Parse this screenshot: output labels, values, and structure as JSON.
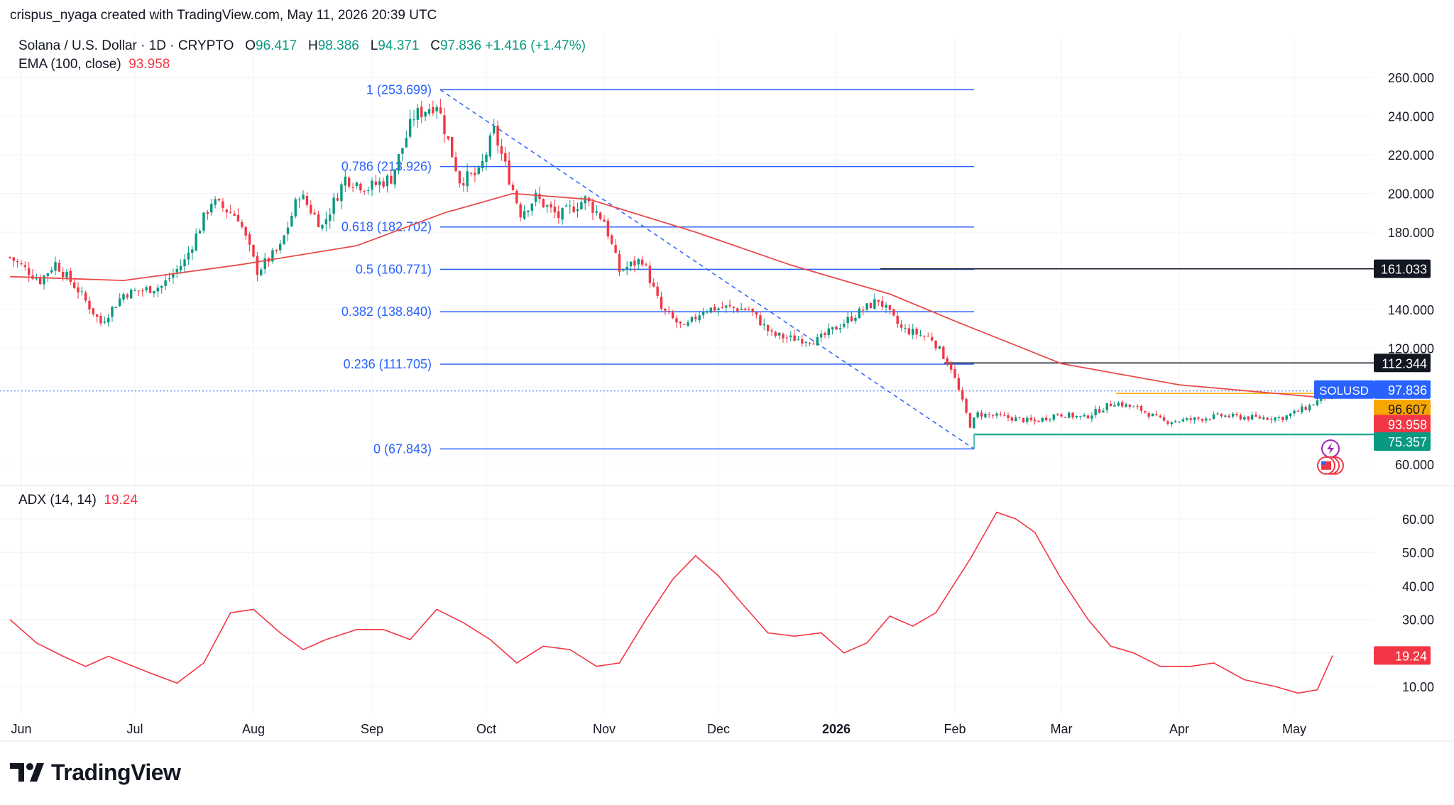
{
  "header": {
    "credit": "crispus_nyaga created with TradingView.com, May 11, 2026 20:39 UTC"
  },
  "legend": {
    "symbol": "Solana / U.S. Dollar · 1D · CRYPTO",
    "o_label": "O",
    "o_value": "96.417",
    "h_label": "H",
    "h_value": "98.386",
    "l_label": "L",
    "l_value": "94.371",
    "c_label": "C",
    "c_value": "97.836",
    "change": "+1.416 (+1.47%)",
    "ema_label": "EMA (100, close)",
    "ema_value": "93.958"
  },
  "adx_legend": {
    "label": "ADX (14, 14)",
    "value": "19.24"
  },
  "footer": {
    "brand": "TradingView"
  },
  "colors": {
    "up": "#089981",
    "down": "#f23645",
    "ema": "#e84b4b",
    "fib": "#2962ff",
    "grid": "#f0f3fa",
    "adx": "#f23645",
    "support": "#22ab94"
  },
  "chart_data": [
    {
      "type": "candlestick",
      "title": "Solana / U.S. Dollar · 1D · CRYPTO",
      "x_ticks": [
        "Jun",
        "Jul",
        "Aug",
        "Sep",
        "Oct",
        "Nov",
        "Dec",
        "2026",
        "Feb",
        "Mar",
        "Apr",
        "May"
      ],
      "y_ticks": [
        "60.000",
        "120.000",
        "140.000",
        "180.000",
        "200.000",
        "220.000",
        "240.000",
        "260.000"
      ],
      "ylim": [
        50,
        270
      ],
      "grid": true,
      "series_close": [
        {
          "x": "2025-05-29",
          "y": 167
        },
        {
          "x": "2025-06-06",
          "y": 155
        },
        {
          "x": "2025-06-10",
          "y": 164
        },
        {
          "x": "2025-06-16",
          "y": 150
        },
        {
          "x": "2025-06-22",
          "y": 133
        },
        {
          "x": "2025-06-28",
          "y": 148
        },
        {
          "x": "2025-07-08",
          "y": 152
        },
        {
          "x": "2025-07-14",
          "y": 165
        },
        {
          "x": "2025-07-21",
          "y": 196
        },
        {
          "x": "2025-07-28",
          "y": 188
        },
        {
          "x": "2025-08-02",
          "y": 160
        },
        {
          "x": "2025-08-08",
          "y": 172
        },
        {
          "x": "2025-08-13",
          "y": 200
        },
        {
          "x": "2025-08-19",
          "y": 183
        },
        {
          "x": "2025-08-25",
          "y": 208
        },
        {
          "x": "2025-08-31",
          "y": 203
        },
        {
          "x": "2025-09-06",
          "y": 208
        },
        {
          "x": "2025-09-12",
          "y": 240
        },
        {
          "x": "2025-09-18",
          "y": 247
        },
        {
          "x": "2025-09-24",
          "y": 207
        },
        {
          "x": "2025-09-29",
          "y": 210
        },
        {
          "x": "2025-10-03",
          "y": 232
        },
        {
          "x": "2025-10-10",
          "y": 190
        },
        {
          "x": "2025-10-14",
          "y": 198
        },
        {
          "x": "2025-10-20",
          "y": 188
        },
        {
          "x": "2025-10-27",
          "y": 197
        },
        {
          "x": "2025-11-01",
          "y": 186
        },
        {
          "x": "2025-11-05",
          "y": 160
        },
        {
          "x": "2025-11-11",
          "y": 166
        },
        {
          "x": "2025-11-16",
          "y": 140
        },
        {
          "x": "2025-11-22",
          "y": 130
        },
        {
          "x": "2025-11-27",
          "y": 140
        },
        {
          "x": "2025-12-03",
          "y": 141
        },
        {
          "x": "2025-12-09",
          "y": 140
        },
        {
          "x": "2025-12-15",
          "y": 127
        },
        {
          "x": "2025-12-20",
          "y": 125
        },
        {
          "x": "2025-12-27",
          "y": 124
        },
        {
          "x": "2026-01-05",
          "y": 136
        },
        {
          "x": "2026-01-12",
          "y": 145
        },
        {
          "x": "2026-01-18",
          "y": 130
        },
        {
          "x": "2026-01-26",
          "y": 125
        },
        {
          "x": "2026-01-31",
          "y": 110
        },
        {
          "x": "2026-02-05",
          "y": 80
        },
        {
          "x": "2026-02-07",
          "y": 86
        },
        {
          "x": "2026-02-15",
          "y": 84
        },
        {
          "x": "2026-02-22",
          "y": 82
        },
        {
          "x": "2026-02-28",
          "y": 86
        },
        {
          "x": "2026-03-07",
          "y": 84
        },
        {
          "x": "2026-03-15",
          "y": 92
        },
        {
          "x": "2026-03-22",
          "y": 88
        },
        {
          "x": "2026-03-28",
          "y": 82
        },
        {
          "x": "2026-04-04",
          "y": 83
        },
        {
          "x": "2026-04-12",
          "y": 85
        },
        {
          "x": "2026-04-20",
          "y": 84
        },
        {
          "x": "2026-04-28",
          "y": 84
        },
        {
          "x": "2026-05-05",
          "y": 90
        },
        {
          "x": "2026-05-11",
          "y": 97.836
        }
      ],
      "ema_100": [
        {
          "x": "2025-05-29",
          "y": 157
        },
        {
          "x": "2025-06-28",
          "y": 155
        },
        {
          "x": "2025-07-28",
          "y": 163
        },
        {
          "x": "2025-08-28",
          "y": 173
        },
        {
          "x": "2025-09-20",
          "y": 190
        },
        {
          "x": "2025-10-08",
          "y": 200
        },
        {
          "x": "2025-10-28",
          "y": 197
        },
        {
          "x": "2025-11-25",
          "y": 180
        },
        {
          "x": "2025-12-20",
          "y": 163
        },
        {
          "x": "2026-01-15",
          "y": 148
        },
        {
          "x": "2026-02-01",
          "y": 134
        },
        {
          "x": "2026-03-01",
          "y": 112
        },
        {
          "x": "2026-04-01",
          "y": 101
        },
        {
          "x": "2026-05-11",
          "y": 93.958
        }
      ],
      "fibonacci": [
        {
          "label": "1 (253.699)",
          "value": 253.699
        },
        {
          "label": "0.786 (213.926)",
          "value": 213.926
        },
        {
          "label": "0.618 (182.702)",
          "value": 182.702
        },
        {
          "label": "0.5 (160.771)",
          "value": 160.771
        },
        {
          "label": "0.382 (138.840)",
          "value": 138.84
        },
        {
          "label": "0.236 (111.705)",
          "value": 111.705
        },
        {
          "label": "0 (67.843)",
          "value": 67.843
        }
      ],
      "horizontal_levels": [
        {
          "label": "161.033",
          "value": 161.033
        },
        {
          "label": "112.344",
          "value": 112.344
        },
        {
          "label": "75.357",
          "value": 75.357
        },
        {
          "label": "96.607",
          "value": 96.607
        }
      ],
      "price_tags": [
        {
          "label": "SOLUSD",
          "value": "97.836"
        },
        {
          "label": "",
          "value": "96.607"
        },
        {
          "label": "",
          "value": "93.958"
        },
        {
          "label": "",
          "value": "75.357"
        }
      ]
    },
    {
      "type": "line",
      "title": "ADX (14, 14)",
      "y_ticks": [
        "10.00",
        "30.00",
        "40.00",
        "50.00",
        "60.00"
      ],
      "ylim": [
        3,
        67
      ],
      "grid": true,
      "series": [
        {
          "values": [
            {
              "x": "2025-05-29",
              "y": 30
            },
            {
              "x": "2025-06-05",
              "y": 23
            },
            {
              "x": "2025-06-12",
              "y": 19
            },
            {
              "x": "2025-06-18",
              "y": 16
            },
            {
              "x": "2025-06-24",
              "y": 19
            },
            {
              "x": "2025-07-05",
              "y": 14
            },
            {
              "x": "2025-07-12",
              "y": 11
            },
            {
              "x": "2025-07-19",
              "y": 17
            },
            {
              "x": "2025-07-26",
              "y": 32
            },
            {
              "x": "2025-08-01",
              "y": 33
            },
            {
              "x": "2025-08-08",
              "y": 26
            },
            {
              "x": "2025-08-14",
              "y": 21
            },
            {
              "x": "2025-08-20",
              "y": 24
            },
            {
              "x": "2025-08-28",
              "y": 27
            },
            {
              "x": "2025-09-04",
              "y": 27
            },
            {
              "x": "2025-09-11",
              "y": 24
            },
            {
              "x": "2025-09-18",
              "y": 33
            },
            {
              "x": "2025-09-25",
              "y": 29
            },
            {
              "x": "2025-10-02",
              "y": 24
            },
            {
              "x": "2025-10-09",
              "y": 17
            },
            {
              "x": "2025-10-16",
              "y": 22
            },
            {
              "x": "2025-10-23",
              "y": 21
            },
            {
              "x": "2025-10-30",
              "y": 16
            },
            {
              "x": "2025-11-05",
              "y": 17
            },
            {
              "x": "2025-11-12",
              "y": 30
            },
            {
              "x": "2025-11-19",
              "y": 42
            },
            {
              "x": "2025-11-25",
              "y": 49
            },
            {
              "x": "2025-12-01",
              "y": 43
            },
            {
              "x": "2025-12-07",
              "y": 35
            },
            {
              "x": "2025-12-14",
              "y": 26
            },
            {
              "x": "2025-12-21",
              "y": 25
            },
            {
              "x": "2025-12-28",
              "y": 26
            },
            {
              "x": "2026-01-03",
              "y": 20
            },
            {
              "x": "2026-01-09",
              "y": 23
            },
            {
              "x": "2026-01-15",
              "y": 31
            },
            {
              "x": "2026-01-21",
              "y": 28
            },
            {
              "x": "2026-01-27",
              "y": 32
            },
            {
              "x": "2026-02-05",
              "y": 48
            },
            {
              "x": "2026-02-12",
              "y": 62
            },
            {
              "x": "2026-02-17",
              "y": 60
            },
            {
              "x": "2026-02-22",
              "y": 56
            },
            {
              "x": "2026-03-01",
              "y": 42
            },
            {
              "x": "2026-03-08",
              "y": 30
            },
            {
              "x": "2026-03-14",
              "y": 22
            },
            {
              "x": "2026-03-20",
              "y": 20
            },
            {
              "x": "2026-03-27",
              "y": 16
            },
            {
              "x": "2026-04-04",
              "y": 16
            },
            {
              "x": "2026-04-10",
              "y": 17
            },
            {
              "x": "2026-04-18",
              "y": 12
            },
            {
              "x": "2026-04-26",
              "y": 10
            },
            {
              "x": "2026-05-02",
              "y": 8
            },
            {
              "x": "2026-05-07",
              "y": 9
            },
            {
              "x": "2026-05-11",
              "y": 19.24
            }
          ]
        }
      ]
    }
  ]
}
